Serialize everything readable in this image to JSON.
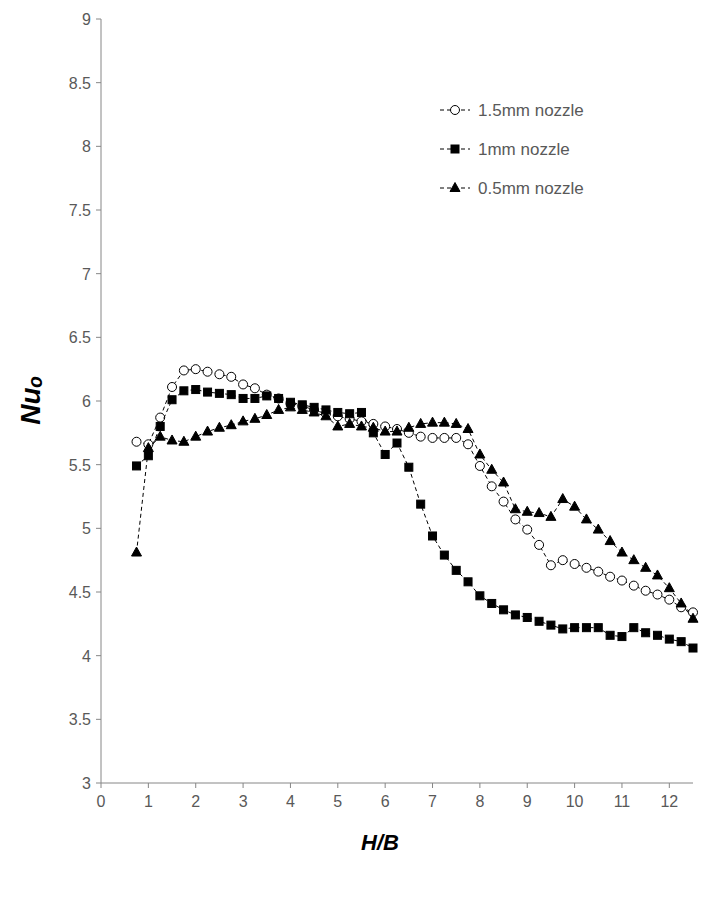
{
  "chart_data": {
    "type": "line",
    "x_label": "H/B",
    "y_label": "Nuₒ",
    "x": [
      0.75,
      1,
      1.25,
      1.5,
      1.75,
      2,
      2.25,
      2.5,
      2.75,
      3,
      3.25,
      3.5,
      3.75,
      4,
      4.25,
      4.5,
      4.75,
      5,
      5.25,
      5.5,
      5.75,
      6,
      6.25,
      6.5,
      6.75,
      7,
      7.25,
      7.5,
      7.75,
      8,
      8.25,
      8.5,
      8.75,
      9,
      9.25,
      9.5,
      9.75,
      10,
      10.25,
      10.5,
      10.75,
      11,
      11.25,
      11.5,
      11.75,
      12,
      12.25,
      12.5
    ],
    "series": [
      {
        "name": "1.5mm nozzle",
        "color": "#000000",
        "marker": "circle",
        "line_style": "dashed",
        "values": [
          5.68,
          5.66,
          5.87,
          6.11,
          6.24,
          6.25,
          6.23,
          6.21,
          6.19,
          6.13,
          6.1,
          6.05,
          6.02,
          5.98,
          5.96,
          5.93,
          5.9,
          5.88,
          5.86,
          5.84,
          5.82,
          5.8,
          5.78,
          5.75,
          5.72,
          5.71,
          5.71,
          5.71,
          5.66,
          5.49,
          5.33,
          5.21,
          5.07,
          4.99,
          4.87,
          4.71,
          4.75,
          4.72,
          4.69,
          4.66,
          4.62,
          4.59,
          4.55,
          4.51,
          4.48,
          4.44,
          4.38,
          4.34
        ]
      },
      {
        "name": "1mm nozzle",
        "color": "#000000",
        "marker": "square",
        "line_style": "dashed",
        "values": [
          5.49,
          5.57,
          5.8,
          6.01,
          6.08,
          6.09,
          6.07,
          6.06,
          6.05,
          6.02,
          6.02,
          6.04,
          6.02,
          5.99,
          5.97,
          5.95,
          5.93,
          5.91,
          5.9,
          5.91,
          5.75,
          5.58,
          5.67,
          5.48,
          5.19,
          4.94,
          4.79,
          4.67,
          4.58,
          4.47,
          4.41,
          4.36,
          4.32,
          4.3,
          4.27,
          4.24,
          4.21,
          4.22,
          4.22,
          4.22,
          4.16,
          4.15,
          4.22,
          4.18,
          4.16,
          4.13,
          4.11,
          4.06
        ]
      },
      {
        "name": "0.5mm nozzle",
        "color": "#000000",
        "marker": "triangle",
        "line_style": "dashed",
        "values": [
          4.81,
          5.63,
          5.72,
          5.69,
          5.68,
          5.72,
          5.76,
          5.79,
          5.81,
          5.84,
          5.86,
          5.89,
          5.93,
          5.95,
          5.93,
          5.91,
          5.88,
          5.8,
          5.82,
          5.8,
          5.79,
          5.76,
          5.76,
          5.79,
          5.82,
          5.83,
          5.83,
          5.82,
          5.78,
          5.58,
          5.46,
          5.36,
          5.15,
          5.13,
          5.12,
          5.09,
          5.23,
          5.17,
          5.07,
          4.99,
          4.9,
          4.81,
          4.75,
          4.69,
          4.63,
          4.53,
          4.41,
          4.29
        ]
      }
    ],
    "xlim": [
      0,
      12.5
    ],
    "xticks": [
      0,
      1,
      2,
      3,
      4,
      5,
      6,
      7,
      8,
      9,
      10,
      11,
      12
    ],
    "ylim": [
      3,
      9
    ],
    "yticks": [
      3,
      3.5,
      4,
      4.5,
      5,
      5.5,
      6,
      6.5,
      7,
      7.5,
      8,
      8.5,
      9
    ],
    "grid": false,
    "legend": "upper right"
  }
}
